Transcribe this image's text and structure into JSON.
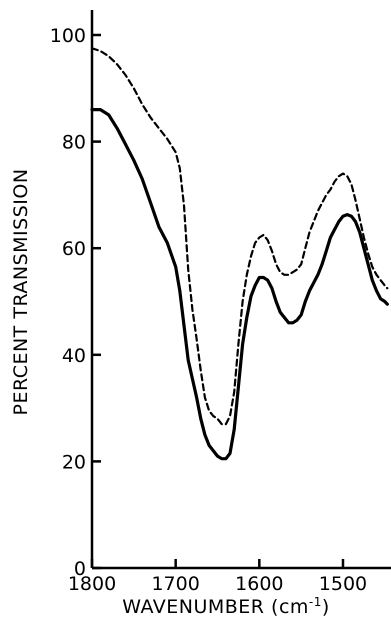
{
  "chart_data": {
    "type": "line",
    "title": "",
    "xlabel": "WAVENUMBER (cm",
    "xlabel_sup": "-1",
    "xlabel_close": ")",
    "ylabel": "PERCENT TRANSMISSION",
    "xlim": [
      1800,
      1445
    ],
    "ylim": [
      0,
      100
    ],
    "x_reversed": true,
    "grid": false,
    "x_ticks": [
      1800,
      1700,
      1600,
      1500
    ],
    "x_tick_labels": [
      "1800",
      "1700",
      "1600",
      "1500"
    ],
    "y_ticks": [
      0,
      20,
      40,
      60,
      80,
      100
    ],
    "y_tick_labels": [
      "0",
      "20",
      "40",
      "60",
      "80",
      "100"
    ],
    "series": [
      {
        "style": "solid",
        "color": "#000000",
        "x": [
          1800,
          1790,
          1780,
          1770,
          1760,
          1750,
          1740,
          1730,
          1720,
          1710,
          1700,
          1695,
          1690,
          1685,
          1680,
          1675,
          1670,
          1665,
          1660,
          1655,
          1650,
          1645,
          1640,
          1635,
          1630,
          1625,
          1620,
          1615,
          1610,
          1605,
          1600,
          1595,
          1590,
          1585,
          1580,
          1575,
          1570,
          1565,
          1560,
          1555,
          1550,
          1545,
          1540,
          1535,
          1530,
          1525,
          1520,
          1515,
          1510,
          1505,
          1500,
          1495,
          1490,
          1485,
          1480,
          1475,
          1470,
          1465,
          1460,
          1455,
          1450,
          1447
        ],
        "y": [
          86,
          86,
          85,
          82.5,
          79.5,
          76.5,
          73,
          68.5,
          64,
          61,
          56.5,
          52,
          45.5,
          39,
          35.5,
          32,
          28,
          25,
          23,
          22,
          21,
          20.5,
          20.5,
          21.5,
          26,
          34,
          42,
          47,
          51,
          53,
          54.5,
          54.5,
          54,
          52.5,
          50,
          48,
          47,
          46,
          46,
          46.5,
          47.5,
          50,
          52,
          53.5,
          55,
          57,
          59.5,
          62,
          63.5,
          65,
          66,
          66.3,
          66,
          65,
          63,
          60,
          57,
          54,
          52,
          50.5,
          50,
          49.5
        ]
      },
      {
        "style": "dashed",
        "color": "#000000",
        "x": [
          1800,
          1790,
          1780,
          1770,
          1760,
          1750,
          1740,
          1730,
          1720,
          1710,
          1700,
          1695,
          1690,
          1685,
          1680,
          1675,
          1670,
          1665,
          1660,
          1655,
          1650,
          1645,
          1640,
          1635,
          1630,
          1625,
          1620,
          1615,
          1610,
          1605,
          1600,
          1595,
          1590,
          1585,
          1580,
          1575,
          1570,
          1565,
          1560,
          1555,
          1550,
          1545,
          1540,
          1535,
          1530,
          1525,
          1520,
          1515,
          1510,
          1505,
          1500,
          1495,
          1490,
          1485,
          1480,
          1475,
          1470,
          1465,
          1460,
          1455,
          1450,
          1447
        ],
        "y": [
          97.5,
          97,
          96,
          94.5,
          92.5,
          90,
          87,
          84.5,
          82.5,
          80.5,
          78,
          75,
          68,
          56,
          48.5,
          43,
          37,
          32,
          29.5,
          28.5,
          28,
          27,
          27,
          28.5,
          33,
          42,
          50,
          55,
          58.5,
          61,
          62,
          62.5,
          61.5,
          59.5,
          57,
          55.5,
          55,
          55,
          55.5,
          56,
          57,
          60,
          63,
          65,
          67,
          68.5,
          70,
          71,
          72.5,
          73.5,
          74,
          73.5,
          72,
          69,
          65.5,
          62,
          59,
          56.5,
          55,
          54,
          53,
          52.5
        ]
      }
    ]
  }
}
